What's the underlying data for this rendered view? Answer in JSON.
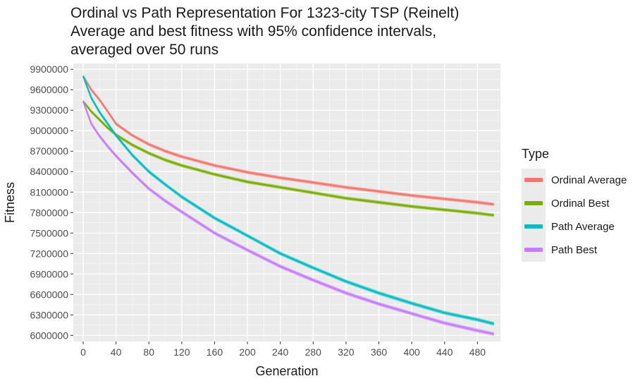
{
  "chart_data": {
    "type": "line",
    "title_lines": [
      "Ordinal vs Path Representation For 1323-city TSP (Reinelt)",
      "Average and best fitness with 95% confidence intervals,",
      "averaged over 50 runs"
    ],
    "xlabel": "Generation",
    "ylabel": "Fitness",
    "xlim": [
      -12,
      508
    ],
    "ylim": [
      5910000,
      9985000
    ],
    "x_ticks": [
      0,
      40,
      80,
      120,
      160,
      200,
      240,
      280,
      320,
      360,
      400,
      440,
      480
    ],
    "y_ticks": [
      6000000,
      6300000,
      6600000,
      6900000,
      7200000,
      7500000,
      7800000,
      8100000,
      8400000,
      8700000,
      9000000,
      9300000,
      9600000,
      9900000
    ],
    "grid": true,
    "legend_title": "Type",
    "legend_position": "right",
    "series": [
      {
        "name": "Ordinal Average",
        "color": "#f8766d",
        "x": [
          0,
          10,
          20,
          30,
          40,
          60,
          80,
          100,
          120,
          160,
          200,
          240,
          280,
          320,
          360,
          400,
          440,
          480,
          500
        ],
        "values": [
          9800000,
          9600000,
          9450000,
          9280000,
          9100000,
          8930000,
          8800000,
          8700000,
          8620000,
          8490000,
          8390000,
          8310000,
          8240000,
          8170000,
          8110000,
          8050000,
          8000000,
          7950000,
          7920000
        ],
        "ci_halfwidth": 25000
      },
      {
        "name": "Ordinal Best",
        "color": "#7cae00",
        "x": [
          0,
          10,
          20,
          30,
          40,
          60,
          80,
          100,
          120,
          160,
          200,
          240,
          280,
          320,
          360,
          400,
          440,
          480,
          500
        ],
        "values": [
          9430000,
          9280000,
          9160000,
          9040000,
          8940000,
          8790000,
          8670000,
          8570000,
          8490000,
          8360000,
          8250000,
          8170000,
          8090000,
          8010000,
          7950000,
          7890000,
          7840000,
          7790000,
          7760000
        ],
        "ci_halfwidth": 25000
      },
      {
        "name": "Path Average",
        "color": "#00bfc4",
        "x": [
          0,
          10,
          20,
          30,
          40,
          60,
          80,
          100,
          120,
          160,
          200,
          240,
          280,
          320,
          360,
          400,
          440,
          480,
          500
        ],
        "values": [
          9800000,
          9480000,
          9270000,
          9100000,
          8930000,
          8640000,
          8400000,
          8210000,
          8030000,
          7720000,
          7460000,
          7200000,
          6990000,
          6790000,
          6620000,
          6470000,
          6330000,
          6230000,
          6170000
        ],
        "ci_halfwidth": 28000
      },
      {
        "name": "Path Best",
        "color": "#c77cff",
        "x": [
          0,
          10,
          20,
          30,
          40,
          60,
          80,
          100,
          120,
          160,
          200,
          240,
          280,
          320,
          360,
          400,
          440,
          480,
          500
        ],
        "values": [
          9430000,
          9100000,
          8920000,
          8770000,
          8630000,
          8380000,
          8150000,
          7970000,
          7810000,
          7500000,
          7250000,
          7010000,
          6810000,
          6620000,
          6460000,
          6320000,
          6180000,
          6070000,
          6020000
        ],
        "ci_halfwidth": 28000
      }
    ]
  }
}
